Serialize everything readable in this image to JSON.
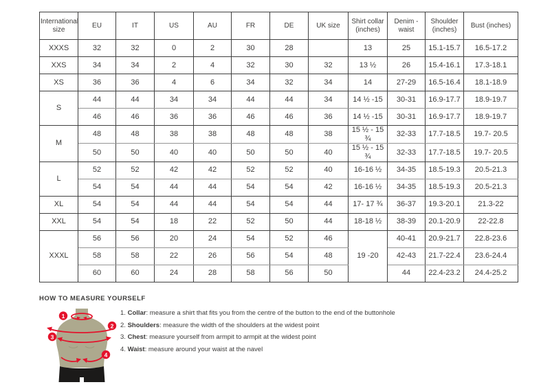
{
  "size_table": {
    "headers": [
      "International size",
      "EU",
      "IT",
      "US",
      "AU",
      "FR",
      "DE",
      "UK size",
      "Shirt collar (inches)",
      "Denim - waist",
      "Shoulder (inches)",
      "Bust (inches)"
    ],
    "groups": [
      {
        "label": "XXXS",
        "rows": [
          [
            "32",
            "32",
            "0",
            "2",
            "30",
            "28",
            "",
            "13",
            "25",
            "15.1-15.7",
            "16.5-17.2"
          ]
        ]
      },
      {
        "label": "XXS",
        "rows": [
          [
            "34",
            "34",
            "2",
            "4",
            "32",
            "30",
            "32",
            "13 ½",
            "26",
            "15.4-16.1",
            "17.3-18.1"
          ]
        ]
      },
      {
        "label": "XS",
        "rows": [
          [
            "36",
            "36",
            "4",
            "6",
            "34",
            "32",
            "34",
            "14",
            "27-29",
            "16.5-16.4",
            "18.1-18.9"
          ]
        ]
      },
      {
        "label": "S",
        "rows": [
          [
            "44",
            "44",
            "34",
            "34",
            "44",
            "44",
            "34",
            "14 ½ -15",
            "30-31",
            "16.9-17.7",
            "18.9-19.7"
          ],
          [
            "46",
            "46",
            "36",
            "36",
            "46",
            "46",
            "36",
            "14 ½ -15",
            "30-31",
            "16.9-17.7",
            "18.9-19.7"
          ]
        ]
      },
      {
        "label": "M",
        "rows": [
          [
            "48",
            "48",
            "38",
            "38",
            "48",
            "48",
            "38",
            "15 ½ - 15 ¾",
            "32-33",
            "17.7-18.5",
            "19.7- 20.5"
          ],
          [
            "50",
            "50",
            "40",
            "40",
            "50",
            "50",
            "40",
            "15 ½ - 15 ¾",
            "32-33",
            "17.7-18.5",
            "19.7- 20.5"
          ]
        ]
      },
      {
        "label": "L",
        "rows": [
          [
            "52",
            "52",
            "42",
            "42",
            "52",
            "52",
            "40",
            "16-16 ½",
            "34-35",
            "18.5-19.3",
            "20.5-21.3"
          ],
          [
            "54",
            "54",
            "44",
            "44",
            "54",
            "54",
            "42",
            "16-16 ½",
            "34-35",
            "18.5-19.3",
            "20.5-21.3"
          ]
        ]
      },
      {
        "label": "XL",
        "rows": [
          [
            "54",
            "54",
            "44",
            "44",
            "54",
            "54",
            "44",
            "17- 17 ¾",
            "36-37",
            "19.3-20.1",
            "21.3-22"
          ]
        ]
      },
      {
        "label": "XXL",
        "rows": [
          [
            "54",
            "54",
            "18",
            "22",
            "52",
            "50",
            "44",
            "18-18 ½",
            "38-39",
            "20.1-20.9",
            "22-22.8"
          ]
        ]
      },
      {
        "label": "XXXL",
        "collar_span": "19 -20",
        "rows": [
          [
            "56",
            "56",
            "20",
            "24",
            "54",
            "52",
            "46",
            "40-41",
            "20.9-21.7",
            "22.8-23.6"
          ],
          [
            "58",
            "58",
            "22",
            "26",
            "56",
            "54",
            "48",
            "42-43",
            "21.7-22.4",
            "23.6-24.4"
          ],
          [
            "60",
            "60",
            "24",
            "28",
            "58",
            "56",
            "50",
            "44",
            "22.4-23.2",
            "24.4-25.2"
          ]
        ]
      }
    ]
  },
  "measure": {
    "heading": "HOW TO MEASURE YOURSELF",
    "items": [
      {
        "num": "1.",
        "label": "Collar",
        "text": ": measure a shirt that fits you from the centre of the button to the end of the buttonhole"
      },
      {
        "num": "2.",
        "label": "Shoulders",
        "text": ": measure the width of the shoulders at the widest point"
      },
      {
        "num": "3.",
        "label": "Chest",
        "text": ": measure yourself from armpit to armpit at the widest point"
      },
      {
        "num": "4.",
        "label": "Waist",
        "text": ": measure around your waist at the navel"
      }
    ],
    "figure_badges": [
      "1",
      "2",
      "3",
      "4"
    ]
  },
  "colors": {
    "accent_red": "#e4122b",
    "torso": "#ada98e",
    "torso_shadow": "#9b977c",
    "shorts": "#1b1a19",
    "border_dark": "#3f3f3f",
    "border_light": "#949494",
    "text": "#3d3c3b"
  }
}
